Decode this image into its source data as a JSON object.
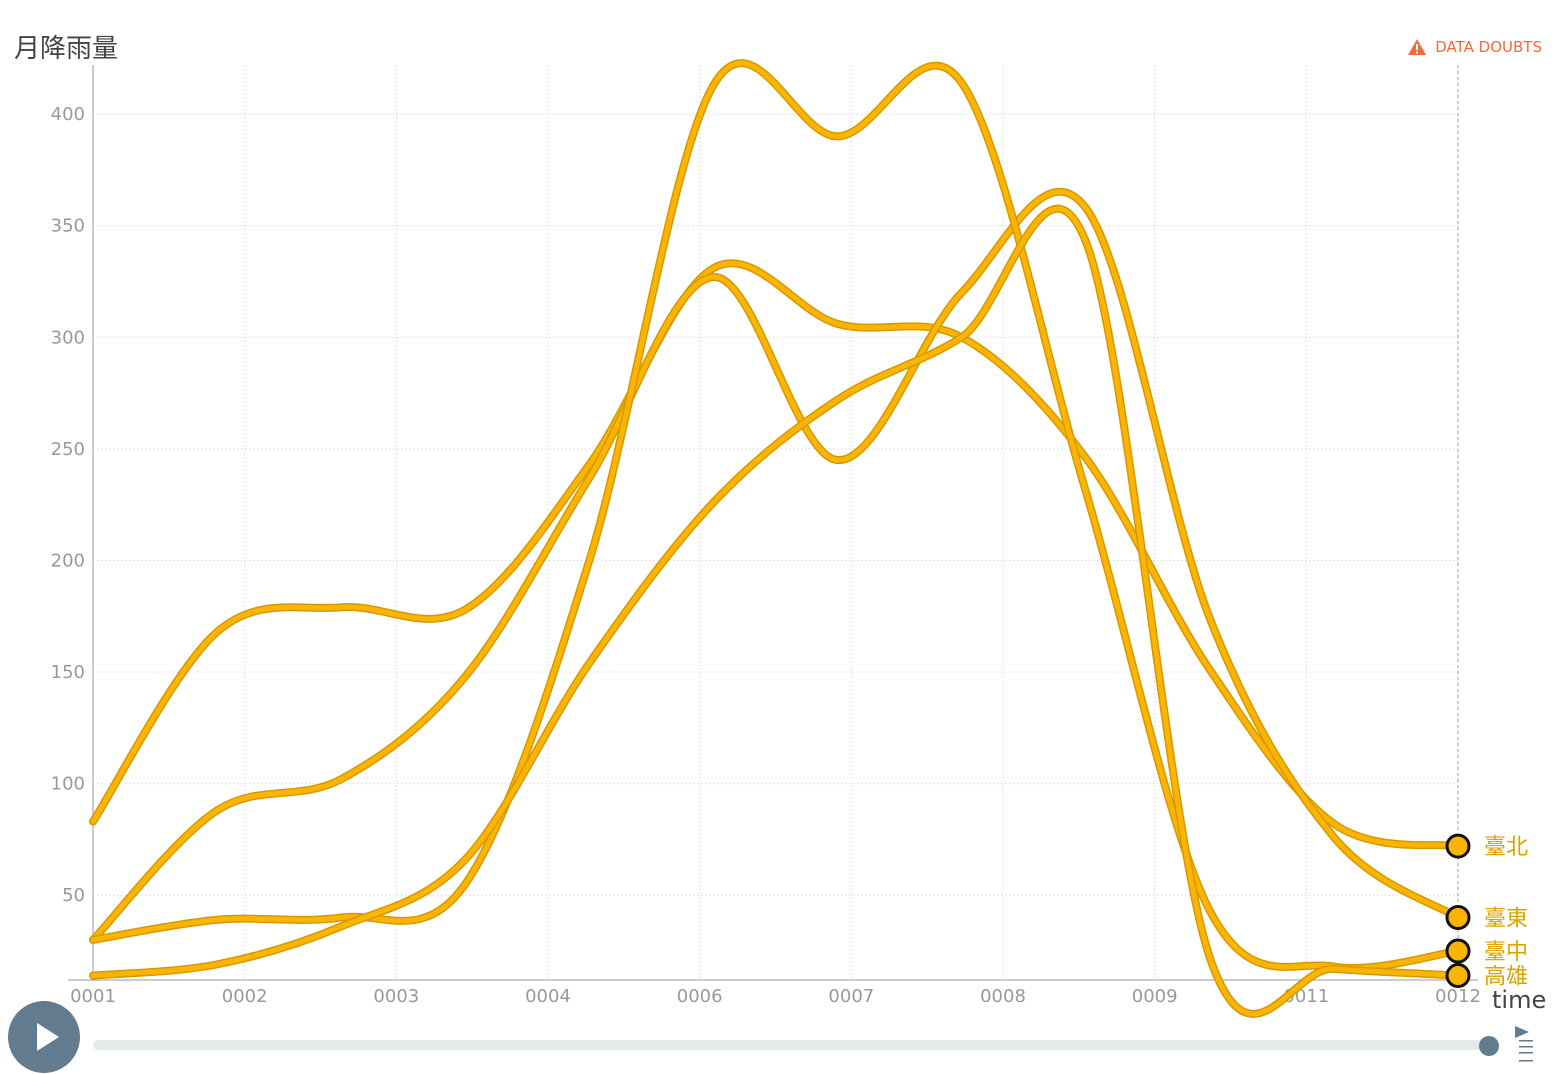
{
  "title": "月降雨量",
  "warning": {
    "label": "DATA DOUBTS",
    "icon": "warning-triangle-icon",
    "color": "#f26b3a"
  },
  "timeslider": {
    "label": "time",
    "value": "0012"
  },
  "icons": {
    "play": "play-icon",
    "menu": "menu-icon"
  },
  "colors": {
    "line": "#fcb400",
    "line_outline": "#d39a00",
    "axis_text": "#999999",
    "grid": "#cccccc",
    "slider": "#637b8f",
    "track": "#e4eaeb"
  },
  "chart_data": {
    "type": "line",
    "title": "月降雨量",
    "xlabel": "time",
    "ylabel": "",
    "grid": true,
    "ylim": [
      12,
      422
    ],
    "x_ticks": [
      "0001",
      "0002",
      "0003",
      "0004",
      "0006",
      "0007",
      "0008",
      "0009",
      "0011",
      "0012"
    ],
    "y_ticks": [
      50,
      100,
      150,
      200,
      250,
      300,
      350,
      400
    ],
    "series": [
      {
        "name": "臺北",
        "values": [
          83,
          168,
          179,
          178,
          243,
          331,
          306,
          300,
          246,
          151,
          82,
          72
        ]
      },
      {
        "name": "臺東",
        "values": [
          30,
          88,
          102,
          148,
          237,
          327,
          245,
          320,
          358,
          174,
          76,
          40
        ]
      },
      {
        "name": "臺中",
        "values": [
          30,
          39,
          40,
          55,
          200,
          413,
          390,
          414,
          231,
          43,
          18,
          25
        ]
      },
      {
        "name": "高雄",
        "values": [
          14,
          19,
          36,
          66,
          154,
          226,
          272,
          300,
          343,
          22,
          17,
          14
        ]
      }
    ],
    "x": [
      1,
      2,
      3,
      4,
      5,
      6,
      7,
      8,
      9,
      10,
      11,
      12
    ]
  }
}
